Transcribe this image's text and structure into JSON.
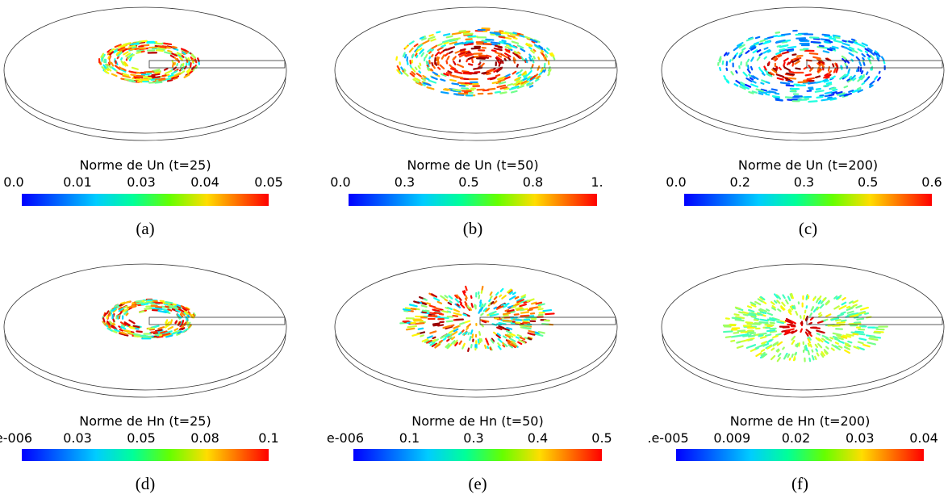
{
  "panels": [
    {
      "title": "Norme de Un (t=25)",
      "ticks": [
        "0.0",
        "0.01",
        "0.03",
        "0.04",
        "0.05"
      ],
      "caption": "(a)"
    },
    {
      "title": "Norme de Un (t=50)",
      "ticks": [
        "0.0",
        "0.3",
        "0.5",
        "0.8",
        "1."
      ],
      "caption": "(b)"
    },
    {
      "title": "Norme de Un (t=200)",
      "ticks": [
        "0.0",
        "0.2",
        "0.3",
        "0.5",
        "0.6"
      ],
      "caption": "(c)"
    },
    {
      "title": "Norme de Hn (t=25)",
      "ticks": [
        "e-006",
        "0.03",
        "0.05",
        "0.08",
        "0.1"
      ],
      "caption": "(d)"
    },
    {
      "title": "Norme de Hn (t=50)",
      "ticks": [
        "e-006",
        "0.1",
        "0.3",
        "0.4",
        "0.5"
      ],
      "caption": "(e)"
    },
    {
      "title": "Norme de Hn (t=200)",
      "ticks": [
        ".e-005",
        "0.009",
        "0.02",
        "0.03",
        "0.04"
      ],
      "caption": "(f)"
    }
  ]
}
